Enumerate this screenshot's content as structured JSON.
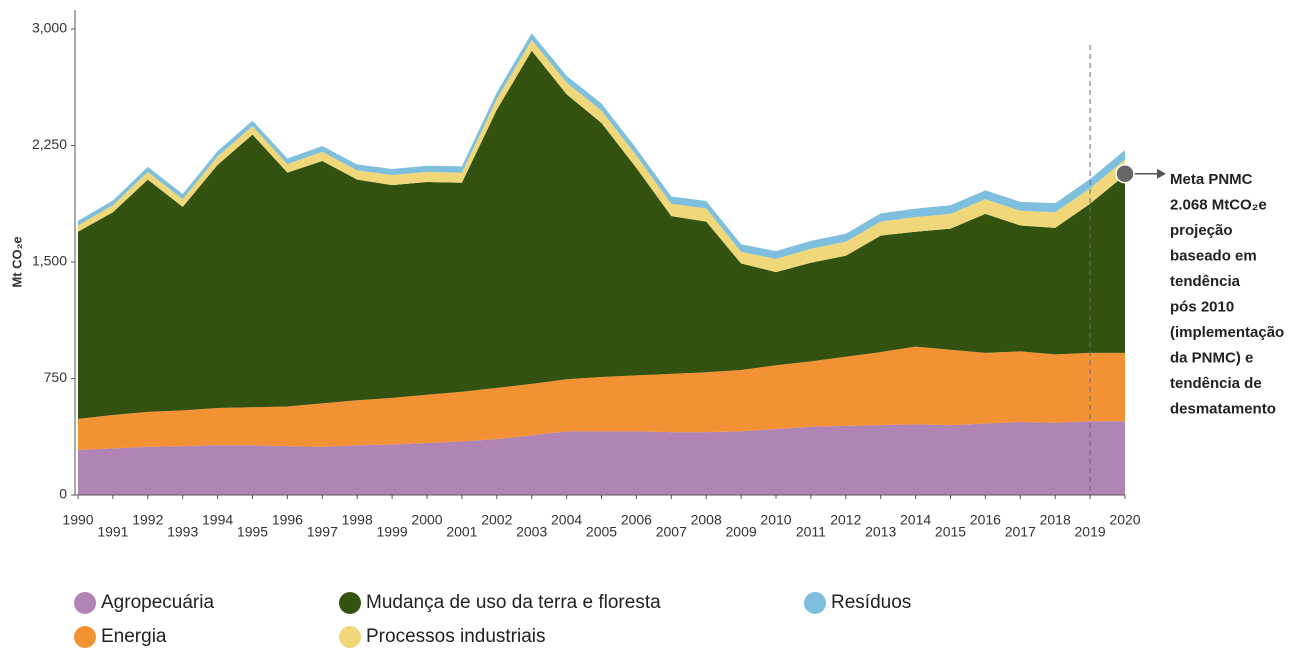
{
  "chart_data": {
    "type": "stacked_area",
    "y_label": "Mt CO₂e",
    "x": [
      1990,
      1991,
      1992,
      1993,
      1994,
      1995,
      1996,
      1997,
      1998,
      1999,
      2000,
      2001,
      2002,
      2003,
      2004,
      2005,
      2006,
      2007,
      2008,
      2009,
      2010,
      2011,
      2012,
      2013,
      2014,
      2015,
      2016,
      2017,
      2018,
      2019,
      2020
    ],
    "xlim": [
      1990,
      2020
    ],
    "xticks": [
      1990,
      1991,
      1992,
      1993,
      1994,
      1995,
      1996,
      1997,
      1998,
      1999,
      2000,
      2001,
      2002,
      2003,
      2004,
      2005,
      2006,
      2007,
      2008,
      2009,
      2010,
      2011,
      2012,
      2013,
      2014,
      2015,
      2016,
      2017,
      2018,
      2019,
      2020
    ],
    "ylim": [
      0,
      3000
    ],
    "yticks": [
      0,
      {
        "value": 750,
        "label": "750"
      },
      {
        "value": 1500,
        "label": "1,500"
      },
      {
        "value": 2250,
        "label": "2,250"
      },
      {
        "value": 3000,
        "label": "3,000"
      }
    ],
    "series": [
      {
        "name": "Agropecuária",
        "color": "#b085b5",
        "values": [
          290,
          300,
          310,
          315,
          320,
          320,
          315,
          310,
          320,
          325,
          335,
          345,
          360,
          385,
          410,
          410,
          410,
          405,
          405,
          410,
          425,
          440,
          445,
          450,
          455,
          450,
          460,
          470,
          465,
          475,
          475
        ]
      },
      {
        "name": "Energia",
        "color": "#f39234",
        "values": [
          200,
          215,
          225,
          230,
          240,
          245,
          255,
          280,
          290,
          300,
          310,
          320,
          330,
          330,
          335,
          350,
          360,
          375,
          385,
          395,
          410,
          420,
          445,
          470,
          500,
          485,
          455,
          455,
          440,
          440,
          440
        ]
      },
      {
        "name": "Mudança de uso da terra e floresta",
        "color": "#33520f",
        "values": [
          1205,
          1305,
          1495,
          1310,
          1565,
          1755,
          1505,
          1560,
          1420,
          1370,
          1370,
          1345,
          1790,
          2145,
          1835,
          1635,
          1335,
          1015,
          970,
          685,
          600,
          635,
          650,
          750,
          740,
          780,
          895,
          810,
          815,
          960,
          1145
        ]
      },
      {
        "name": "Processos industriais",
        "color": "#f0d77a",
        "values": [
          40,
          45,
          50,
          50,
          55,
          55,
          55,
          60,
          60,
          65,
          65,
          65,
          70,
          70,
          75,
          80,
          80,
          80,
          85,
          75,
          85,
          90,
          90,
          90,
          95,
          95,
          95,
          95,
          100,
          100,
          100
        ]
      },
      {
        "name": "Resíduos",
        "color": "#7dbfdc",
        "values": [
          30,
          31,
          32,
          33,
          34,
          35,
          36,
          37,
          38,
          39,
          40,
          41,
          42,
          43,
          44,
          45,
          46,
          47,
          48,
          49,
          50,
          51,
          52,
          53,
          54,
          55,
          56,
          57,
          58,
          59,
          60
        ]
      }
    ],
    "vline": 2019,
    "annotation": {
      "x": 2020,
      "y": 2068,
      "lines": [
        "Meta PNMC",
        "2.068 MtCO₂e",
        "projeção",
        "baseado em",
        "tendência",
        "pós 2010",
        "(implementação",
        "da PNMC) e",
        "tendência de",
        "desmatamento"
      ]
    }
  }
}
